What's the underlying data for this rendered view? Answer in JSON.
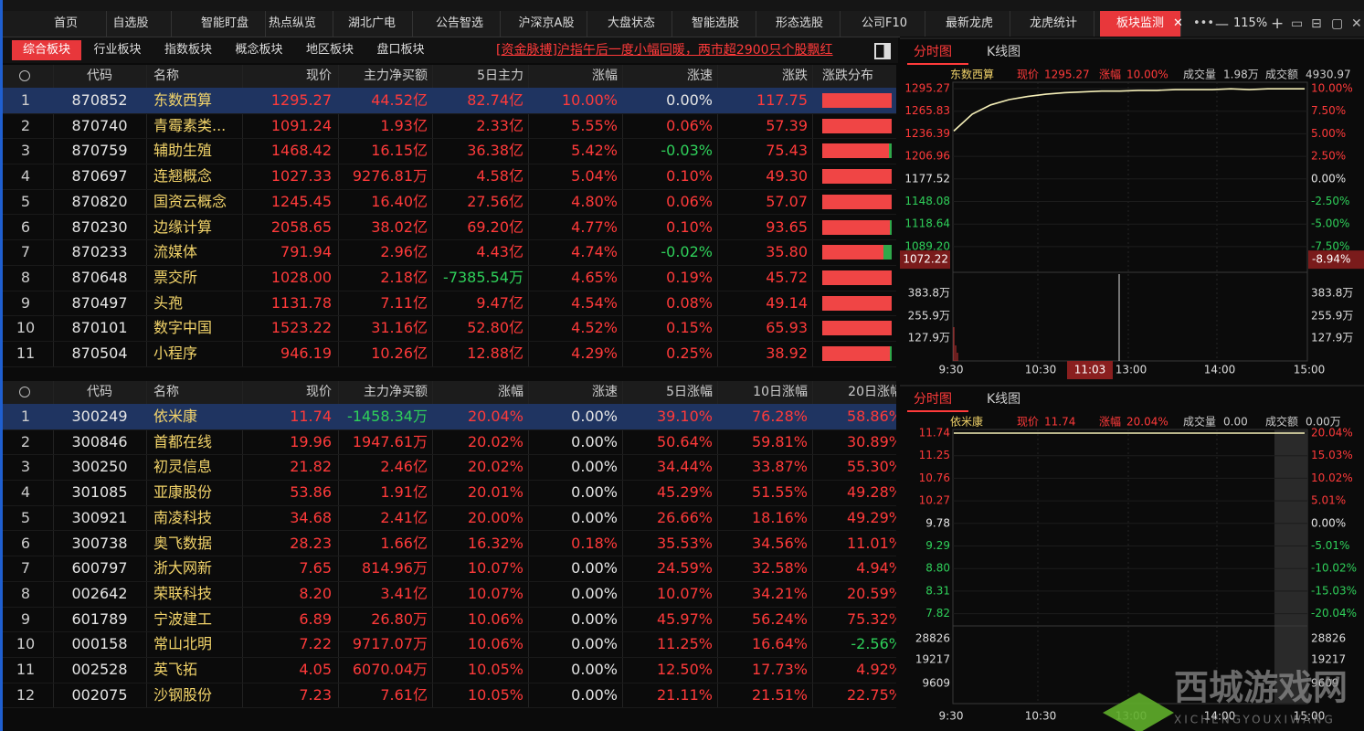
{
  "nav": {
    "tabs": [
      "首页",
      "自选股",
      "智能盯盘",
      "热点纵览",
      "湖北广电",
      "公告智选",
      "沪深京A股",
      "大盘状态",
      "智能选股",
      "形态选股",
      "公司F10",
      "最新龙虎",
      "龙虎统计",
      "板块监测"
    ],
    "active": 13,
    "zoom": "115%"
  },
  "subtabs": {
    "items": [
      "综合板块",
      "行业板块",
      "指数板块",
      "概念板块",
      "地区板块",
      "盘口板块"
    ],
    "active": 0
  },
  "news": "[资金脉搏]沪指午后一度小幅回暖，两市超2900只个股飘红",
  "sector_table": {
    "headers": [
      "代码",
      "名称",
      "现价",
      "主力净买额",
      "5日主力",
      "涨幅",
      "涨速",
      "涨跌",
      "涨跌分布"
    ],
    "rows": [
      [
        "1",
        "870852",
        "东数西算",
        "1295.27",
        "44.52亿",
        "82.74亿",
        "10.00%",
        "0.00%",
        "117.75"
      ],
      [
        "2",
        "870740",
        "青霉素类...",
        "1091.24",
        "1.93亿",
        "2.33亿",
        "5.55%",
        "0.06%",
        "57.39"
      ],
      [
        "3",
        "870759",
        "辅助生殖",
        "1468.42",
        "16.15亿",
        "36.38亿",
        "5.42%",
        "-0.03%",
        "75.43"
      ],
      [
        "4",
        "870697",
        "连翘概念",
        "1027.33",
        "9276.81万",
        "4.58亿",
        "5.04%",
        "0.10%",
        "49.30"
      ],
      [
        "5",
        "870820",
        "国资云概念",
        "1245.45",
        "16.40亿",
        "27.56亿",
        "4.80%",
        "0.06%",
        "57.07"
      ],
      [
        "6",
        "870230",
        "边缘计算",
        "2058.65",
        "38.02亿",
        "69.20亿",
        "4.77%",
        "0.10%",
        "93.65"
      ],
      [
        "7",
        "870233",
        "流媒体",
        "791.94",
        "2.96亿",
        "4.43亿",
        "4.74%",
        "-0.02%",
        "35.80"
      ],
      [
        "8",
        "870648",
        "票交所",
        "1028.00",
        "2.18亿",
        "-7385.54万",
        "4.65%",
        "0.19%",
        "45.72"
      ],
      [
        "9",
        "870497",
        "头孢",
        "1131.78",
        "7.11亿",
        "9.47亿",
        "4.54%",
        "0.08%",
        "49.14"
      ],
      [
        "10",
        "870101",
        "数字中国",
        "1523.22",
        "31.16亿",
        "52.80亿",
        "4.52%",
        "0.15%",
        "65.93"
      ],
      [
        "11",
        "870504",
        "小程序",
        "946.19",
        "10.26亿",
        "12.88亿",
        "4.29%",
        "0.25%",
        "38.92"
      ]
    ],
    "distribution": [
      100,
      100,
      96,
      100,
      100,
      98,
      88,
      100,
      100,
      100,
      97
    ]
  },
  "stock_table": {
    "headers": [
      "代码",
      "名称",
      "现价",
      "主力净买额",
      "涨幅",
      "涨速",
      "5日涨幅",
      "10日涨幅",
      "20日涨幅"
    ],
    "rows": [
      [
        "1",
        "300249",
        "依米康",
        "11.74",
        "-1458.34万",
        "20.04%",
        "0.00%",
        "39.10%",
        "76.28%",
        "58.86%"
      ],
      [
        "2",
        "300846",
        "首都在线",
        "19.96",
        "1947.61万",
        "20.02%",
        "0.00%",
        "50.64%",
        "59.81%",
        "30.89%"
      ],
      [
        "3",
        "300250",
        "初灵信息",
        "21.82",
        "2.46亿",
        "20.02%",
        "0.00%",
        "34.44%",
        "33.87%",
        "55.30%"
      ],
      [
        "4",
        "301085",
        "亚康股份",
        "53.86",
        "1.91亿",
        "20.01%",
        "0.00%",
        "45.29%",
        "51.55%",
        "49.28%"
      ],
      [
        "5",
        "300921",
        "南凌科技",
        "34.68",
        "2.41亿",
        "20.00%",
        "0.00%",
        "26.66%",
        "18.16%",
        "49.29%"
      ],
      [
        "6",
        "300738",
        "奥飞数据",
        "28.23",
        "1.66亿",
        "16.32%",
        "0.18%",
        "35.53%",
        "34.56%",
        "11.01%"
      ],
      [
        "7",
        "600797",
        "浙大网新",
        "7.65",
        "814.96万",
        "10.07%",
        "0.00%",
        "24.59%",
        "32.58%",
        "4.94%"
      ],
      [
        "8",
        "002642",
        "荣联科技",
        "8.20",
        "3.41亿",
        "10.07%",
        "0.00%",
        "10.07%",
        "34.21%",
        "20.59%"
      ],
      [
        "9",
        "601789",
        "宁波建工",
        "6.89",
        "26.80万",
        "10.06%",
        "0.00%",
        "45.97%",
        "56.24%",
        "75.32%"
      ],
      [
        "10",
        "000158",
        "常山北明",
        "7.22",
        "9717.07万",
        "10.06%",
        "0.00%",
        "11.25%",
        "16.64%",
        "-2.56%"
      ],
      [
        "11",
        "002528",
        "英飞拓",
        "4.05",
        "6070.04万",
        "10.05%",
        "0.00%",
        "12.50%",
        "17.73%",
        "4.92%"
      ],
      [
        "12",
        "002075",
        "沙钢股份",
        "7.23",
        "7.61亿",
        "10.05%",
        "0.00%",
        "21.11%",
        "21.51%",
        "22.75%"
      ]
    ]
  },
  "charts": [
    {
      "tabs": [
        "分时图",
        "K线图"
      ],
      "name": "东数西算",
      "info": [
        {
          "label": "现价",
          "value": "1295.27"
        },
        {
          "label": "涨幅",
          "value": "10.00%"
        },
        {
          "label": "成交量",
          "value": "1.98万"
        },
        {
          "label": "成交额",
          "value": "4930.97"
        }
      ],
      "yticks": [
        1295.27,
        1265.83,
        1236.39,
        1206.96,
        1177.52,
        1148.08,
        1118.64,
        {
          "value": 1089.2,
          "label": "1089.20"
        }
      ],
      "pct_labels": [
        "10.00%",
        "7.50%",
        "5.00%",
        "2.50%",
        "0.00%",
        "-2.50%",
        "-5.00%",
        "-7.50%"
      ],
      "low": 1072.22,
      "low_pct": "-8.94%",
      "volume_labels": [
        "383.8万",
        "255.9万",
        "127.9万"
      ],
      "time_labels": [
        "9:30",
        "10:30",
        "13:00",
        "14:00",
        "15:00"
      ],
      "cursor_time": "11:03",
      "line": [
        1240,
        1262,
        1274,
        1281,
        1285,
        1288,
        1290,
        1291,
        1292,
        1292,
        1293,
        1293,
        1294,
        1294,
        1294,
        1295,
        1294,
        1295,
        1295,
        1295
      ]
    },
    {
      "tabs": [
        "分时图",
        "K线图"
      ],
      "name": "依米康",
      "info": [
        {
          "label": "现价",
          "value": "11.74"
        },
        {
          "label": "涨幅",
          "value": "20.04%"
        },
        {
          "label": "成交量",
          "value": "0.00"
        },
        {
          "label": "成交额",
          "value": "0.00万"
        }
      ],
      "yticks": [
        11.74,
        11.25,
        10.76,
        10.27,
        9.78,
        9.29,
        {
          "value": 8.8,
          "label": "8.80"
        },
        8.31,
        7.82
      ],
      "pct_labels": [
        "20.04%",
        "15.03%",
        "10.02%",
        "5.01%",
        "0.00%",
        "-5.01%",
        "-10.02%",
        "-15.03%",
        "-20.04%"
      ],
      "volume_labels": [
        "28826",
        "19217",
        "9609"
      ],
      "time_labels": [
        "9:30",
        "10:30",
        "13:00",
        "14:00",
        "15:00"
      ],
      "line": [
        11.74,
        11.74
      ]
    }
  ],
  "watermark": {
    "title": "西城游戏网",
    "sub": "XICHENGYOUXIWANG"
  }
}
